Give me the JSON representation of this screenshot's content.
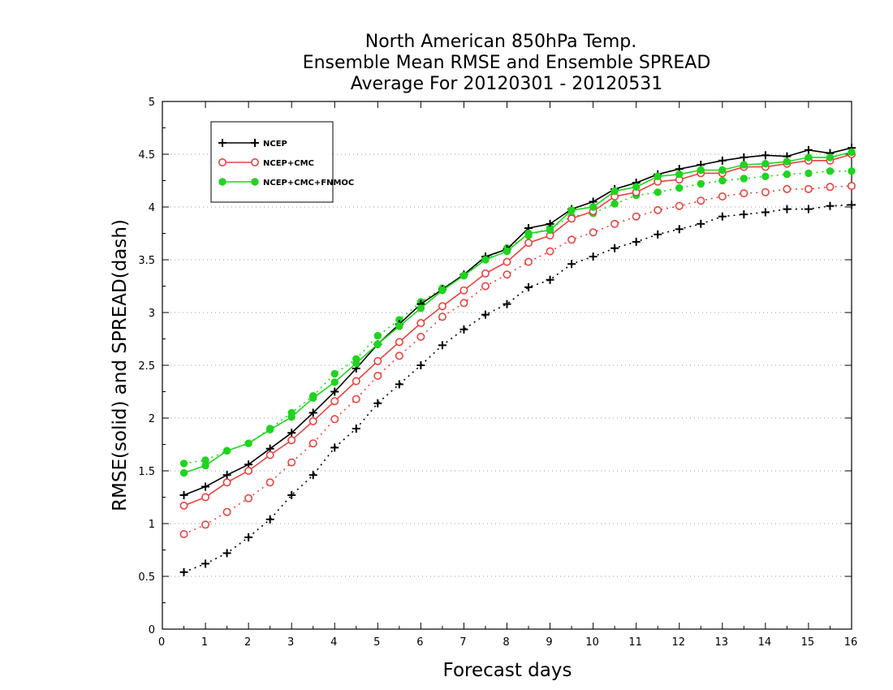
{
  "chart_data": {
    "type": "line",
    "title": [
      "North American 850hPa Temp.",
      "Ensemble Mean RMSE and Ensemble SPREAD",
      "Average For 20120301 - 20120531"
    ],
    "xlabel": "Forecast days",
    "ylabel": "RMSE(solid) and SPREAD(dash)",
    "xlim": [
      0,
      16
    ],
    "ylim": [
      0,
      5
    ],
    "xticks": [
      0,
      1,
      2,
      3,
      4,
      5,
      6,
      7,
      8,
      9,
      10,
      11,
      12,
      13,
      14,
      15,
      16
    ],
    "yticks": [
      0,
      0.5,
      1,
      1.5,
      2,
      2.5,
      3,
      3.5,
      4,
      4.5,
      5
    ],
    "ytick_labels": [
      "0",
      "0.5",
      "1",
      "1.5",
      "2",
      "2.5",
      "3",
      "3.5",
      "4",
      "4.5",
      "5"
    ],
    "grid": "horizontal dotted",
    "legend_position": "top-left",
    "x": [
      0.5,
      1,
      1.5,
      2,
      2.5,
      3,
      3.5,
      4,
      4.5,
      5,
      5.5,
      6,
      6.5,
      7,
      7.5,
      8,
      8.5,
      9,
      9.5,
      10,
      10.5,
      11,
      11.5,
      12,
      12.5,
      13,
      13.5,
      14,
      14.5,
      15,
      15.5,
      16
    ],
    "series": [
      {
        "name": "NCEP",
        "metric": "RMSE",
        "style": "solid",
        "color": "#000000",
        "marker": "plus",
        "values": [
          1.27,
          1.35,
          1.46,
          1.56,
          1.71,
          1.86,
          2.05,
          2.25,
          2.47,
          2.7,
          2.89,
          3.08,
          3.22,
          3.36,
          3.53,
          3.6,
          3.8,
          3.84,
          3.98,
          4.05,
          4.17,
          4.23,
          4.31,
          4.36,
          4.4,
          4.44,
          4.47,
          4.49,
          4.48,
          4.54,
          4.51,
          4.56
        ],
        "show_in_legend": true
      },
      {
        "name": "NCEP+CMC",
        "metric": "RMSE",
        "style": "solid",
        "color": "#e8423f",
        "marker": "circle-open",
        "values": [
          1.17,
          1.25,
          1.39,
          1.5,
          1.65,
          1.79,
          1.97,
          2.16,
          2.35,
          2.54,
          2.72,
          2.9,
          3.06,
          3.21,
          3.37,
          3.48,
          3.66,
          3.73,
          3.89,
          3.96,
          4.1,
          4.14,
          4.24,
          4.26,
          4.32,
          4.32,
          4.38,
          4.38,
          4.41,
          4.44,
          4.44,
          4.5
        ],
        "show_in_legend": true
      },
      {
        "name": "NCEP+CMC+FNMOC",
        "metric": "RMSE",
        "style": "solid",
        "color": "#1fd41f",
        "marker": "circle-filled",
        "values": [
          1.48,
          1.55,
          1.69,
          1.76,
          1.89,
          2.01,
          2.19,
          2.34,
          2.52,
          2.7,
          2.87,
          3.04,
          3.21,
          3.35,
          3.5,
          3.58,
          3.75,
          3.78,
          3.97,
          4.0,
          4.15,
          4.19,
          4.29,
          4.31,
          4.35,
          4.35,
          4.4,
          4.41,
          4.43,
          4.47,
          4.47,
          4.52
        ],
        "show_in_legend": true
      },
      {
        "name": "NCEP",
        "metric": "SPREAD",
        "style": "dash",
        "color": "#000000",
        "marker": "plus",
        "values": [
          0.54,
          0.62,
          0.72,
          0.87,
          1.04,
          1.27,
          1.46,
          1.72,
          1.9,
          2.14,
          2.32,
          2.5,
          2.69,
          2.84,
          2.98,
          3.08,
          3.24,
          3.31,
          3.46,
          3.53,
          3.61,
          3.67,
          3.74,
          3.79,
          3.84,
          3.91,
          3.93,
          3.95,
          3.98,
          3.98,
          4.01,
          4.02
        ],
        "show_in_legend": false
      },
      {
        "name": "NCEP+CMC",
        "metric": "SPREAD",
        "style": "dash",
        "color": "#e8423f",
        "marker": "circle-open",
        "values": [
          0.9,
          0.99,
          1.11,
          1.24,
          1.39,
          1.58,
          1.76,
          1.99,
          2.18,
          2.4,
          2.59,
          2.77,
          2.96,
          3.09,
          3.25,
          3.36,
          3.48,
          3.58,
          3.69,
          3.76,
          3.84,
          3.91,
          3.97,
          4.01,
          4.06,
          4.1,
          4.13,
          4.14,
          4.17,
          4.17,
          4.19,
          4.2
        ],
        "show_in_legend": false
      },
      {
        "name": "NCEP+CMC+FNMOC",
        "metric": "SPREAD",
        "style": "dash",
        "color": "#1fd41f",
        "marker": "circle-filled",
        "values": [
          1.57,
          1.6,
          1.69,
          1.76,
          1.9,
          2.05,
          2.21,
          2.42,
          2.56,
          2.78,
          2.93,
          3.1,
          3.23,
          3.35,
          3.51,
          3.61,
          3.73,
          3.8,
          3.91,
          3.94,
          4.03,
          4.11,
          4.14,
          4.18,
          4.22,
          4.25,
          4.27,
          4.29,
          4.31,
          4.32,
          4.34,
          4.34
        ],
        "show_in_legend": false
      }
    ]
  }
}
